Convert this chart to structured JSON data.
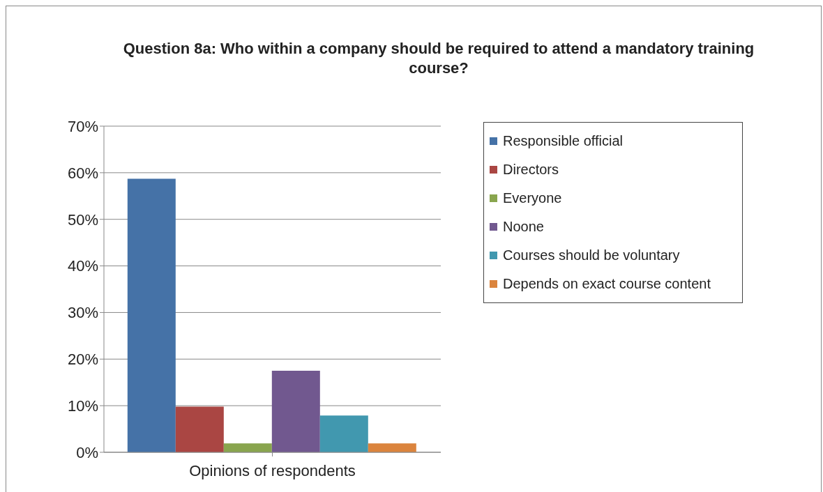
{
  "chart_data": {
    "type": "bar",
    "title": "Question 8a: Who within a company should be required to attend a mandatory training course?",
    "categories": [
      "Opinions of respondents"
    ],
    "series": [
      {
        "name": "Responsible official",
        "color": "#4572a7",
        "values": [
          58.7
        ]
      },
      {
        "name": "Directors",
        "color": "#aa4643",
        "values": [
          9.8
        ]
      },
      {
        "name": "Everyone",
        "color": "#89a54e",
        "values": [
          1.9
        ]
      },
      {
        "name": "Noone",
        "color": "#71588f",
        "values": [
          17.5
        ]
      },
      {
        "name": "Courses should be voluntary",
        "color": "#4198af",
        "values": [
          7.9
        ]
      },
      {
        "name": "Depends on exact course content",
        "color": "#db843d",
        "values": [
          1.9
        ]
      }
    ],
    "ylim": [
      0,
      70
    ],
    "yticks": [
      {
        "value": 0,
        "label": "0%"
      },
      {
        "value": 10,
        "label": "10%"
      },
      {
        "value": 20,
        "label": "20%"
      },
      {
        "value": 30,
        "label": "30%"
      },
      {
        "value": 40,
        "label": "40%"
      },
      {
        "value": 50,
        "label": "50%"
      },
      {
        "value": 60,
        "label": "60%"
      },
      {
        "value": 70,
        "label": "70%"
      }
    ],
    "grid": "y",
    "legend": "right"
  }
}
